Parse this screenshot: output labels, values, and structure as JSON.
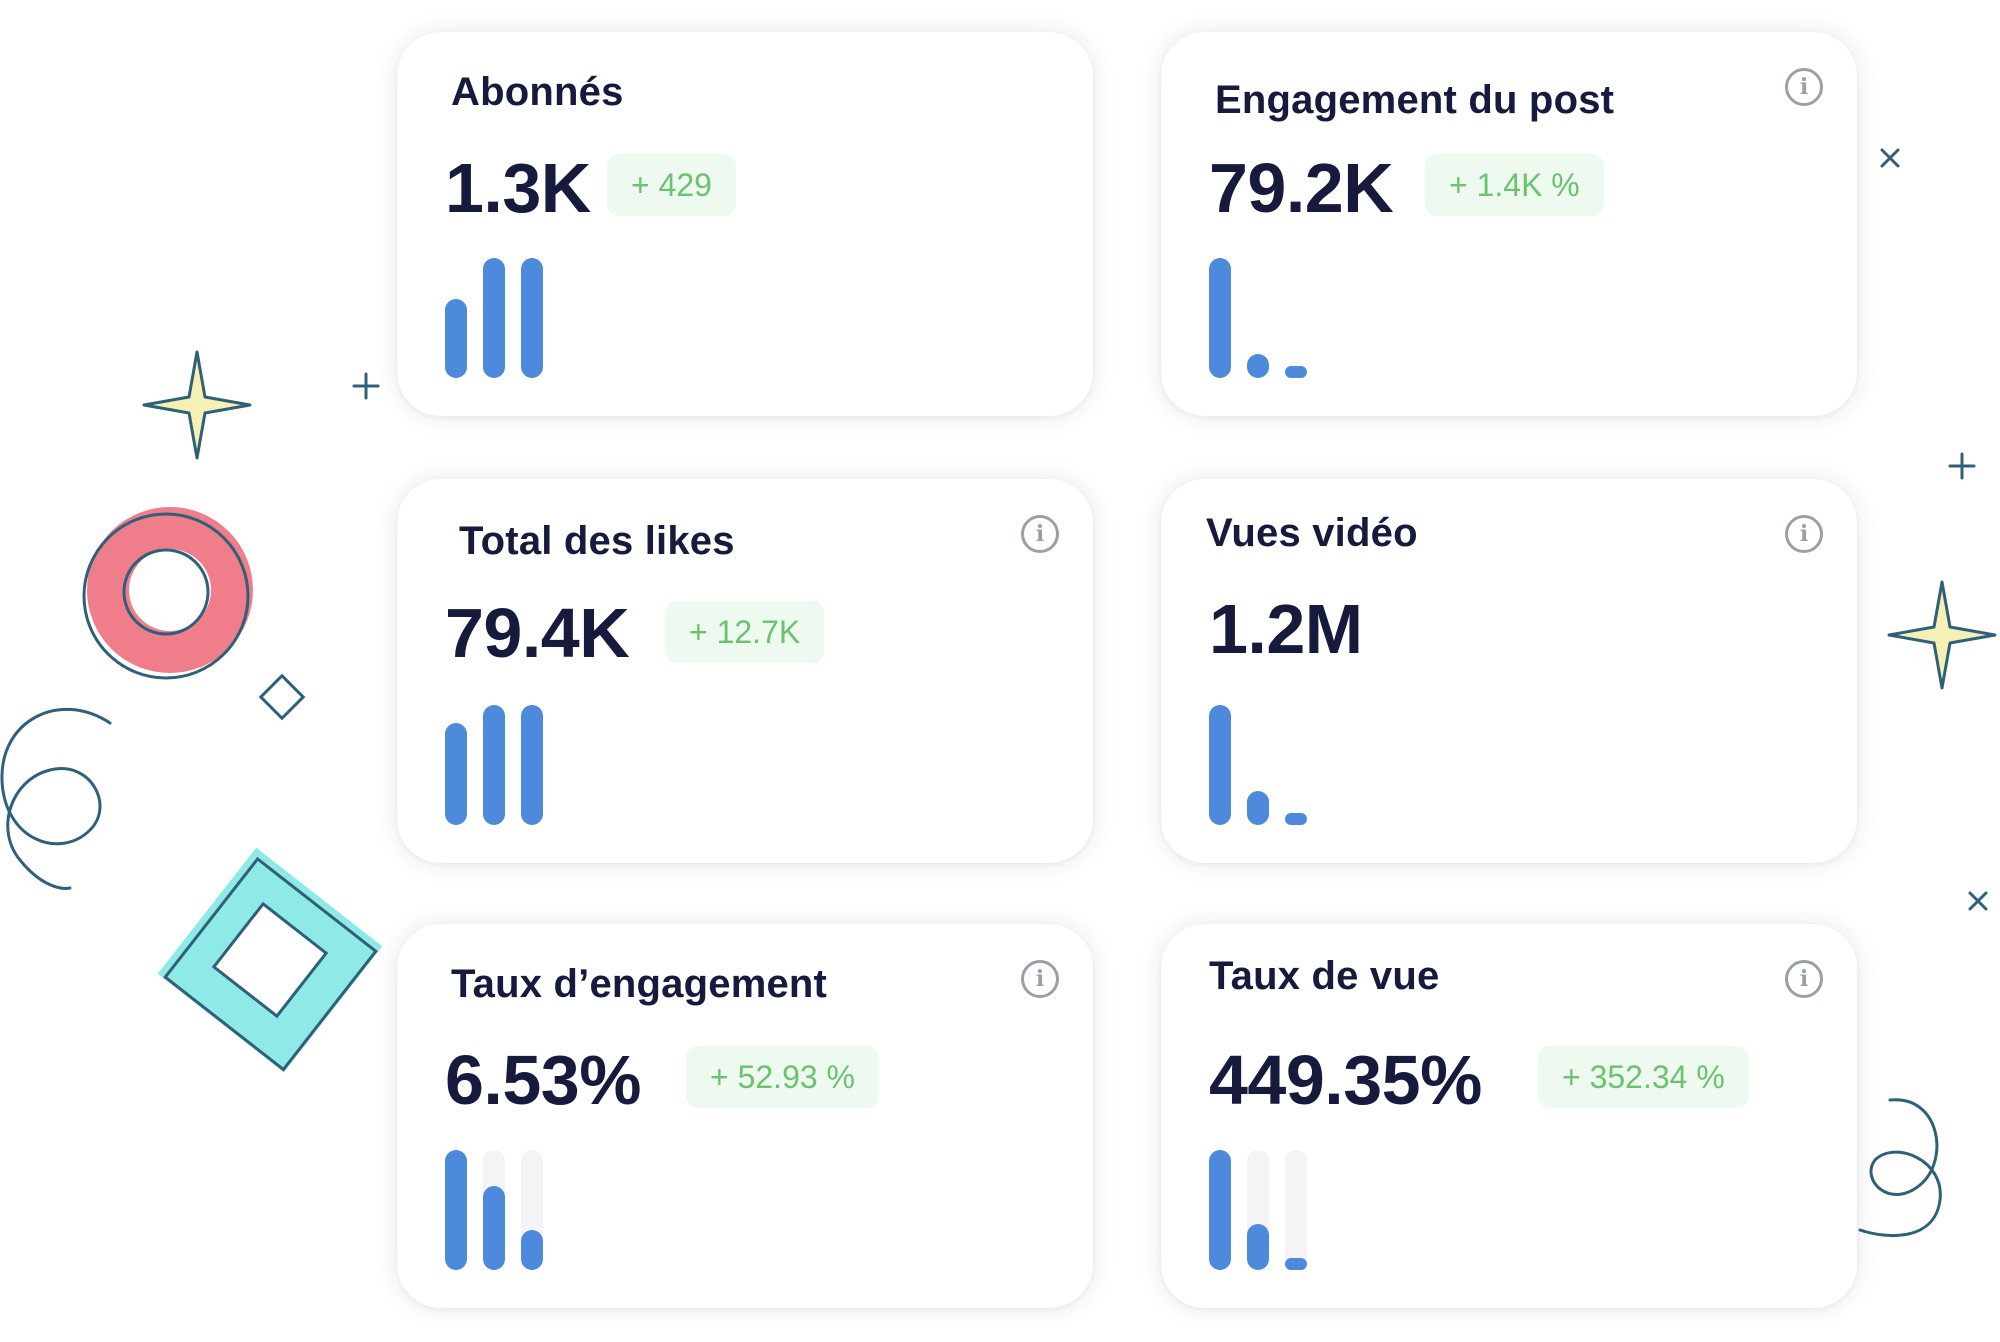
{
  "colors": {
    "title": "#161a3c",
    "value": "#161a3c",
    "delta_text": "#6cc26f",
    "delta_bg": "#eefaef",
    "bar": "#4d8adb",
    "bar_track": "#f3f4f6",
    "info_icon": "#9aa0a8"
  },
  "cards": [
    {
      "title": "Abonnés",
      "value": "1.3K",
      "delta": "+ 429",
      "icon": "info-icon",
      "has_info": false,
      "bars": [
        0.66,
        1.0,
        1.0
      ]
    },
    {
      "title": "Engagement du post",
      "value": "79.2K",
      "delta": "+ 1.4K %",
      "icon": "info-icon",
      "has_info": true,
      "bars": [
        1.0,
        0.2,
        0.1
      ]
    },
    {
      "title": "Total des likes",
      "value": "79.4K",
      "delta": "+ 12.7K",
      "icon": "info-icon",
      "has_info": true,
      "bars": [
        0.85,
        1.0,
        1.0
      ]
    },
    {
      "title": "Vues vidéo",
      "value": "1.2M",
      "delta": "",
      "icon": "info-icon",
      "has_info": true,
      "bars": [
        1.0,
        0.28,
        0.1
      ]
    },
    {
      "title": "Taux d’engagement",
      "value": "6.53%",
      "delta": "+ 52.93 %",
      "icon": "info-icon",
      "has_info": true,
      "bars": [
        1.0,
        0.7,
        0.33
      ],
      "track": true
    },
    {
      "title": "Taux de vue",
      "value": "449.35%",
      "delta": "+ 352.34 %",
      "icon": "info-icon",
      "has_info": true,
      "bars": [
        1.0,
        0.38,
        0.09
      ],
      "track": true
    }
  ]
}
